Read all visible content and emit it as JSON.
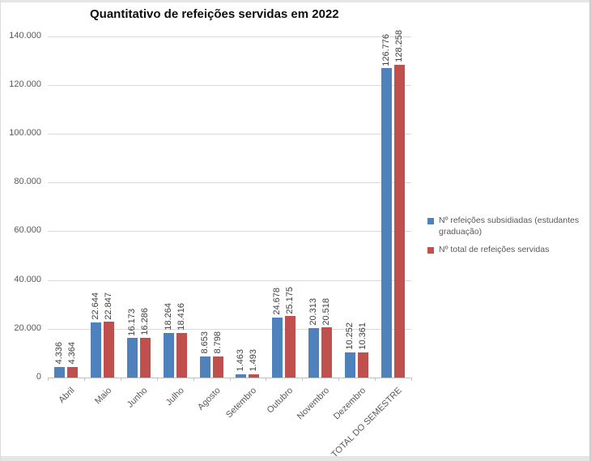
{
  "chart_data": {
    "type": "bar",
    "title": "Quantitativo de refeições servidas em 2022",
    "categories": [
      "Abril",
      "Maio",
      "Junho",
      "Julho",
      "Agosto",
      "Setembro",
      "Outubro",
      "Novembro",
      "Dezembro",
      "TOTAL DO SEMESTRE"
    ],
    "series": [
      {
        "name": "Nº refeições subsidiadas (estudantes graduação)",
        "color": "#4F81BD",
        "values": [
          4336,
          22644,
          16173,
          18264,
          8653,
          1463,
          24678,
          20313,
          10252,
          126776
        ],
        "labels": [
          "4.336",
          "22.644",
          "16.173",
          "18.264",
          "8.653",
          "1.463",
          "24.678",
          "20.313",
          "10.252",
          "126.776"
        ]
      },
      {
        "name": "Nº total de refeições servidas",
        "color": "#C0504D",
        "values": [
          4364,
          22847,
          16286,
          18416,
          8798,
          1493,
          25175,
          20518,
          10361,
          128258
        ],
        "labels": [
          "4.364",
          "22.847",
          "16.286",
          "18.416",
          "8.798",
          "1.493",
          "25.175",
          "20.518",
          "10.361",
          "128.258"
        ]
      }
    ],
    "y_ticks": [
      "140.000",
      "120.000",
      "100.000",
      "80.000",
      "60.000",
      "40.000",
      "20.000",
      "0"
    ],
    "ylim": [
      0,
      140000
    ],
    "y_step": 20000,
    "grid": true,
    "legend_position": "right",
    "value_labels_rotated": true,
    "category_labels_rotated": true
  }
}
